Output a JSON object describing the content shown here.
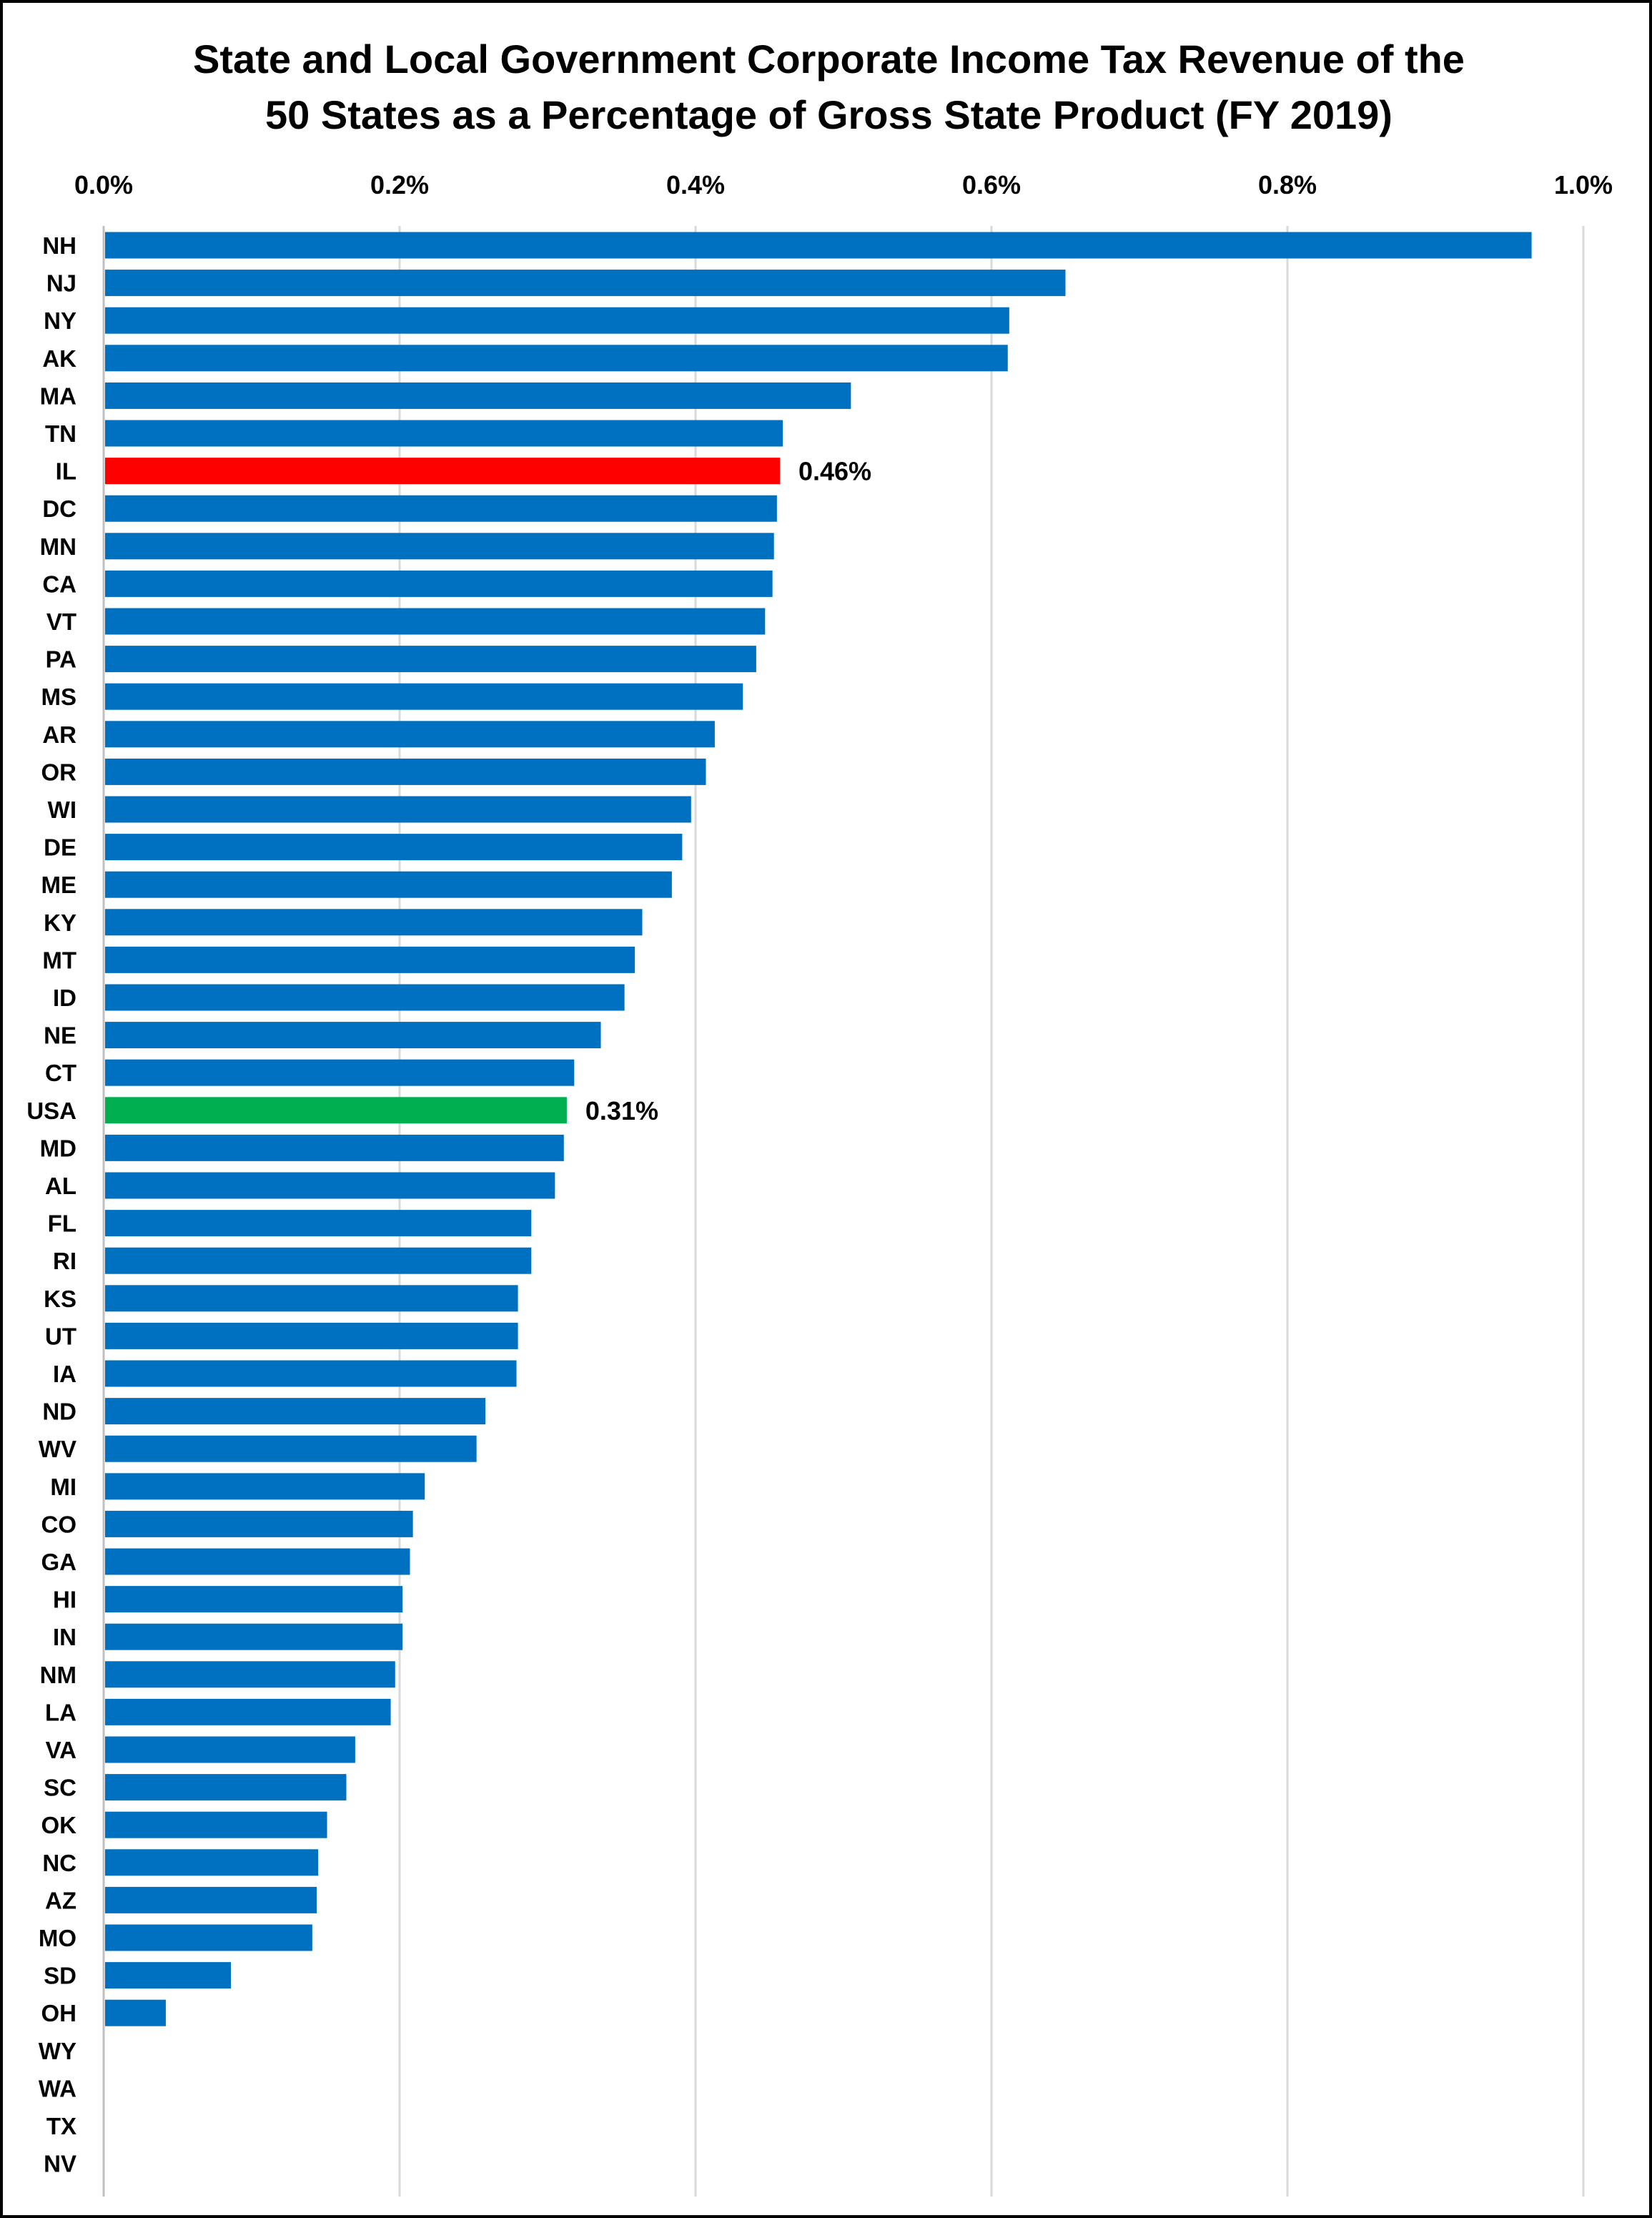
{
  "chart_data": {
    "type": "bar",
    "orientation": "horizontal",
    "title_lines": [
      "State and Local Government Corporate Income Tax Revenue of the",
      "50 States as a Percentage of Gross State Product (FY 2019)"
    ],
    "x_axis": {
      "position": "top",
      "ticks": [
        0.0,
        0.2,
        0.4,
        0.6,
        0.8,
        1.0
      ],
      "tick_labels": [
        "0.0%",
        "0.2%",
        "0.4%",
        "0.6%",
        "0.8%",
        "1.0%"
      ],
      "xlim": [
        0.0,
        1.0
      ],
      "unit": "%"
    },
    "grid": true,
    "colors": {
      "default": "#0070C0",
      "highlight_il": "#FF0000",
      "highlight_usa": "#00B050",
      "gridline": "#D9D9D9"
    },
    "categories": [
      "NH",
      "NJ",
      "NY",
      "AK",
      "MA",
      "TN",
      "IL",
      "DC",
      "MN",
      "CA",
      "VT",
      "PA",
      "MS",
      "AR",
      "OR",
      "WI",
      "DE",
      "ME",
      "KY",
      "MT",
      "ID",
      "NE",
      "CT",
      "USA",
      "MD",
      "AL",
      "FL",
      "RI",
      "KS",
      "UT",
      "IA",
      "ND",
      "WV",
      "MI",
      "CO",
      "GA",
      "HI",
      "IN",
      "NM",
      "LA",
      "VA",
      "SC",
      "OK",
      "NC",
      "AZ",
      "MO",
      "SD",
      "OH",
      "WY",
      "WA",
      "TX",
      "NV"
    ],
    "values": [
      0.965,
      0.65,
      0.612,
      0.611,
      0.505,
      0.459,
      0.457,
      0.455,
      0.453,
      0.452,
      0.447,
      0.441,
      0.432,
      0.413,
      0.407,
      0.397,
      0.391,
      0.384,
      0.364,
      0.359,
      0.352,
      0.336,
      0.318,
      0.313,
      0.311,
      0.305,
      0.289,
      0.289,
      0.28,
      0.28,
      0.279,
      0.258,
      0.252,
      0.217,
      0.209,
      0.207,
      0.202,
      0.202,
      0.197,
      0.194,
      0.17,
      0.164,
      0.151,
      0.145,
      0.144,
      0.141,
      0.086,
      0.042,
      0,
      0,
      0,
      0
    ],
    "highlights": [
      {
        "category": "IL",
        "color": "#FF0000",
        "label": "0.46%"
      },
      {
        "category": "USA",
        "color": "#00B050",
        "label": "0.31%"
      }
    ]
  }
}
